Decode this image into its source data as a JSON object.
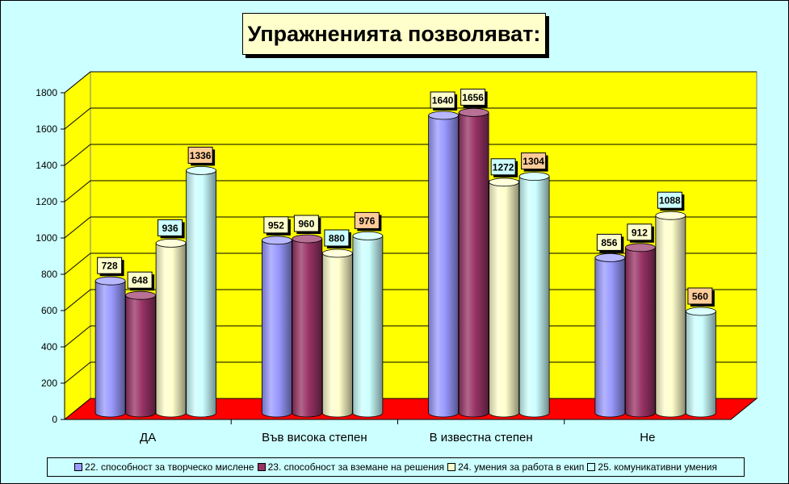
{
  "chart_data": {
    "type": "bar",
    "title": "Упражненията позволяват:",
    "categories": [
      "ДА",
      "Във висока степен",
      "В известна степен",
      "Не"
    ],
    "series": [
      {
        "name": "22. способност за творческо мислене",
        "values": [
          728,
          952,
          1640,
          856
        ],
        "color": "#9999ff",
        "label_bg": "#ffffcc"
      },
      {
        "name": "23. способност за вземане на решения",
        "values": [
          648,
          960,
          1656,
          912
        ],
        "color": "#993366",
        "label_bg": "#ffffcc"
      },
      {
        "name": "24. умения за работа в екип",
        "values": [
          936,
          880,
          1272,
          1088
        ],
        "color": "#ffffcc",
        "label_bg": "#ccffff"
      },
      {
        "name": "25. комуникативни умения",
        "values": [
          1336,
          976,
          1304,
          560
        ],
        "color": "#ccffff",
        "label_bg": "#ffcc99"
      }
    ],
    "ylim": [
      0,
      1800
    ],
    "yticks": [
      0,
      200,
      400,
      600,
      800,
      1000,
      1200,
      1400,
      1600,
      1800
    ],
    "grid": true,
    "legend_position": "bottom",
    "wall_color": "#ffff00",
    "floor_color": "#ff0000",
    "background_color": "#ccffff"
  }
}
